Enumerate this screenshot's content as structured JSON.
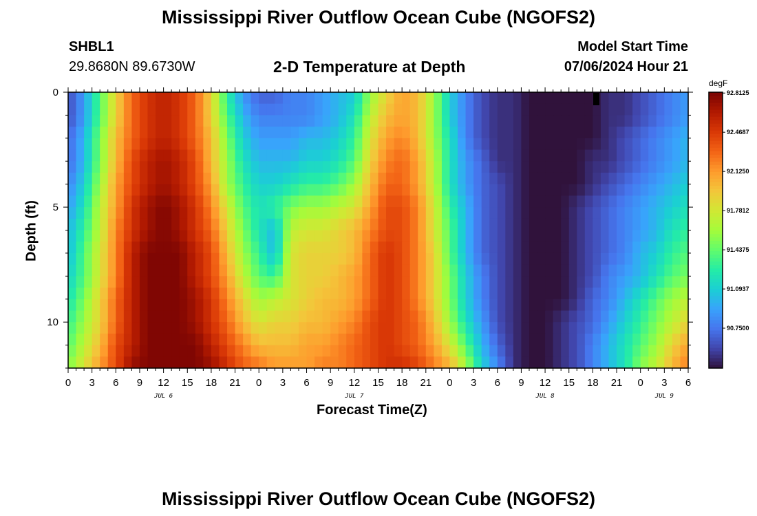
{
  "page": {
    "title": "Mississippi River Outflow Ocean Cube (NGOFS2)",
    "repeat_title": "Mississippi River Outflow Ocean Cube (NGOFS2)",
    "station_id": "SHBL1",
    "station_coords": "29.8680N  89.6730W",
    "plot_title": "2-D Temperature at Depth",
    "model_start_label": "Model Start Time",
    "model_start_value": "07/06/2024 Hour 21"
  },
  "chart_data": {
    "type": "heatmap",
    "title": "2-D Temperature at Depth",
    "xlabel": "Forecast Time(Z)",
    "ylabel": "Depth (ft)",
    "x_range_hours": [
      0,
      78
    ],
    "x_tick_labels": [
      "0",
      "3",
      "6",
      "9",
      "12",
      "15",
      "18",
      "21",
      "0",
      "3",
      "6",
      "9",
      "12",
      "15",
      "18",
      "21",
      "0",
      "3",
      "6",
      "9",
      "12",
      "15",
      "18",
      "21",
      "0",
      "3",
      "6"
    ],
    "day_labels": [
      {
        "label": "JUL 6",
        "hour": 12
      },
      {
        "label": "JUL 7",
        "hour": 36
      },
      {
        "label": "JUL 8",
        "hour": 60
      },
      {
        "label": "JUL 9",
        "hour": 75
      }
    ],
    "y_range_ft": [
      0,
      12
    ],
    "y_tick_labels": [
      "0",
      "5",
      "10"
    ],
    "y_tick_values": [
      0,
      5,
      10
    ],
    "colorbar": {
      "unit": "degF",
      "min": 90.4,
      "max": 92.82,
      "tick_labels": [
        "92.8125",
        "92.4687",
        "92.1250",
        "91.7812",
        "91.4375",
        "91.0937",
        "90.7500"
      ],
      "tick_values": [
        92.8125,
        92.46875,
        92.125,
        91.78125,
        91.4375,
        91.09375,
        90.75
      ],
      "colors": [
        "#30123b",
        "#4145ab",
        "#4675ed",
        "#39a2fc",
        "#1bcfd4",
        "#24eca6",
        "#61fc6c",
        "#a4fc3b",
        "#d1e834",
        "#f3c63a",
        "#fe9b2d",
        "#f36315",
        "#d93806",
        "#b11901",
        "#7a0403"
      ]
    },
    "depth_levels_ft": [
      0.35,
      1.1,
      2.0,
      3.0,
      4.0,
      5.0,
      6.0,
      7.0,
      8.0,
      9.0,
      10.0,
      11.0,
      11.75
    ],
    "time_hours": [
      0,
      2,
      4,
      6,
      8,
      10,
      12,
      14,
      16,
      18,
      20,
      22,
      24,
      26,
      28,
      30,
      32,
      34,
      36,
      38,
      40,
      42,
      44,
      46,
      48,
      50,
      52,
      54,
      56,
      58,
      60,
      62,
      64,
      66,
      68,
      70,
      72,
      74,
      76,
      78
    ],
    "temperature_degF": [
      [
        90.6,
        90.9,
        91.4,
        91.9,
        92.3,
        92.5,
        92.6,
        92.5,
        92.3,
        91.9,
        91.3,
        90.9,
        90.7,
        90.7,
        90.8,
        90.8,
        90.9,
        91.0,
        91.1,
        91.6,
        91.9,
        92.1,
        92.0,
        91.6,
        91.1,
        90.8,
        90.6,
        90.5,
        90.5,
        90.4,
        90.4,
        90.4,
        90.4,
        90.4,
        90.5,
        90.5,
        90.6,
        90.7,
        90.8,
        90.9
      ],
      [
        90.6,
        90.9,
        91.4,
        91.9,
        92.3,
        92.5,
        92.6,
        92.5,
        92.3,
        91.9,
        91.4,
        91.0,
        90.8,
        90.8,
        90.8,
        90.8,
        90.9,
        91.0,
        91.2,
        91.7,
        92.0,
        92.1,
        92.0,
        91.6,
        91.1,
        90.8,
        90.6,
        90.5,
        90.5,
        90.4,
        90.4,
        90.4,
        90.4,
        90.4,
        90.5,
        90.5,
        90.6,
        90.7,
        90.8,
        90.9
      ],
      [
        90.7,
        91.0,
        91.5,
        92.0,
        92.3,
        92.5,
        92.6,
        92.5,
        92.3,
        92.0,
        91.5,
        91.1,
        90.9,
        90.9,
        90.9,
        91.0,
        91.0,
        91.1,
        91.3,
        91.8,
        92.1,
        92.2,
        92.0,
        91.6,
        91.2,
        90.8,
        90.6,
        90.5,
        90.5,
        90.4,
        90.4,
        90.4,
        90.4,
        90.4,
        90.5,
        90.6,
        90.7,
        90.8,
        90.9,
        91.0
      ],
      [
        90.7,
        91.0,
        91.5,
        92.0,
        92.4,
        92.6,
        92.7,
        92.6,
        92.4,
        92.0,
        91.6,
        91.2,
        91.0,
        91.0,
        91.0,
        91.1,
        91.1,
        91.2,
        91.4,
        91.9,
        92.2,
        92.3,
        92.1,
        91.7,
        91.2,
        90.9,
        90.7,
        90.5,
        90.5,
        90.4,
        90.4,
        90.4,
        90.4,
        90.5,
        90.5,
        90.6,
        90.7,
        90.8,
        90.9,
        91.0
      ],
      [
        90.8,
        91.1,
        91.6,
        92.1,
        92.4,
        92.6,
        92.7,
        92.6,
        92.4,
        92.1,
        91.6,
        91.3,
        91.1,
        91.1,
        91.2,
        91.3,
        91.3,
        91.4,
        91.6,
        92.0,
        92.3,
        92.3,
        92.1,
        91.7,
        91.2,
        90.9,
        90.7,
        90.6,
        90.5,
        90.4,
        90.4,
        90.4,
        90.4,
        90.5,
        90.6,
        90.7,
        90.8,
        90.9,
        91.0,
        91.1
      ],
      [
        90.9,
        91.2,
        91.7,
        92.1,
        92.5,
        92.7,
        92.8,
        92.7,
        92.5,
        92.2,
        91.8,
        91.4,
        91.2,
        91.3,
        91.5,
        91.6,
        91.6,
        91.7,
        91.8,
        92.1,
        92.4,
        92.4,
        92.2,
        91.8,
        91.3,
        91.0,
        90.7,
        90.6,
        90.5,
        90.4,
        90.4,
        90.4,
        90.5,
        90.6,
        90.7,
        90.8,
        90.9,
        91.0,
        91.1,
        91.2
      ],
      [
        91.0,
        91.3,
        91.7,
        92.2,
        92.5,
        92.7,
        92.8,
        92.7,
        92.5,
        92.3,
        91.9,
        91.5,
        91.2,
        91.0,
        91.7,
        91.8,
        91.8,
        91.9,
        92.0,
        92.2,
        92.4,
        92.4,
        92.2,
        91.8,
        91.4,
        91.0,
        90.7,
        90.6,
        90.5,
        90.4,
        90.4,
        90.4,
        90.5,
        90.6,
        90.7,
        90.8,
        90.9,
        91.0,
        91.2,
        91.3
      ],
      [
        91.0,
        91.4,
        91.8,
        92.2,
        92.6,
        92.8,
        92.8,
        92.8,
        92.6,
        92.4,
        92.0,
        91.6,
        91.3,
        91.0,
        91.8,
        91.9,
        91.9,
        91.9,
        92.0,
        92.3,
        92.5,
        92.4,
        92.2,
        91.9,
        91.4,
        91.0,
        90.7,
        90.6,
        90.5,
        90.4,
        90.4,
        90.4,
        90.5,
        90.6,
        90.7,
        90.8,
        91.0,
        91.1,
        91.3,
        91.4
      ],
      [
        91.1,
        91.4,
        91.8,
        92.2,
        92.6,
        92.8,
        92.8,
        92.8,
        92.6,
        92.4,
        92.1,
        91.7,
        91.4,
        91.3,
        91.8,
        91.9,
        91.9,
        92.0,
        92.1,
        92.3,
        92.5,
        92.4,
        92.2,
        91.9,
        91.5,
        91.1,
        90.8,
        90.6,
        90.5,
        90.4,
        90.4,
        90.4,
        90.5,
        90.6,
        90.8,
        90.9,
        91.0,
        91.2,
        91.4,
        91.5
      ],
      [
        91.2,
        91.5,
        91.9,
        92.3,
        92.6,
        92.8,
        92.8,
        92.8,
        92.7,
        92.5,
        92.2,
        91.9,
        91.6,
        91.7,
        91.8,
        91.9,
        92.0,
        92.0,
        92.1,
        92.3,
        92.5,
        92.4,
        92.2,
        91.9,
        91.5,
        91.1,
        90.8,
        90.6,
        90.5,
        90.4,
        90.4,
        90.4,
        90.5,
        90.7,
        90.8,
        91.0,
        91.2,
        91.4,
        91.6,
        91.7
      ],
      [
        91.3,
        91.6,
        91.9,
        92.3,
        92.6,
        92.8,
        92.8,
        92.8,
        92.7,
        92.5,
        92.3,
        92.0,
        91.8,
        91.9,
        91.9,
        92.0,
        92.0,
        92.1,
        92.2,
        92.4,
        92.5,
        92.4,
        92.3,
        92.0,
        91.6,
        91.2,
        90.9,
        90.6,
        90.5,
        90.4,
        90.4,
        90.5,
        90.6,
        90.7,
        90.9,
        91.1,
        91.3,
        91.5,
        91.7,
        91.9
      ],
      [
        91.4,
        91.7,
        92.0,
        92.4,
        92.6,
        92.8,
        92.8,
        92.8,
        92.8,
        92.6,
        92.4,
        92.2,
        92.0,
        92.0,
        92.0,
        92.1,
        92.1,
        92.2,
        92.3,
        92.4,
        92.5,
        92.4,
        92.3,
        92.1,
        91.8,
        91.4,
        91.0,
        90.7,
        90.5,
        90.4,
        90.4,
        90.5,
        90.6,
        90.8,
        91.0,
        91.2,
        91.4,
        91.6,
        91.9,
        92.1
      ],
      [
        91.5,
        91.8,
        92.1,
        92.4,
        92.7,
        92.8,
        92.8,
        92.8,
        92.8,
        92.7,
        92.5,
        92.3,
        92.2,
        92.1,
        92.1,
        92.1,
        92.2,
        92.2,
        92.3,
        92.4,
        92.5,
        92.5,
        92.4,
        92.2,
        92.0,
        91.6,
        91.1,
        90.8,
        90.5,
        90.4,
        90.4,
        90.5,
        90.6,
        90.8,
        91.0,
        91.2,
        91.5,
        91.7,
        92.0,
        92.2
      ]
    ]
  }
}
